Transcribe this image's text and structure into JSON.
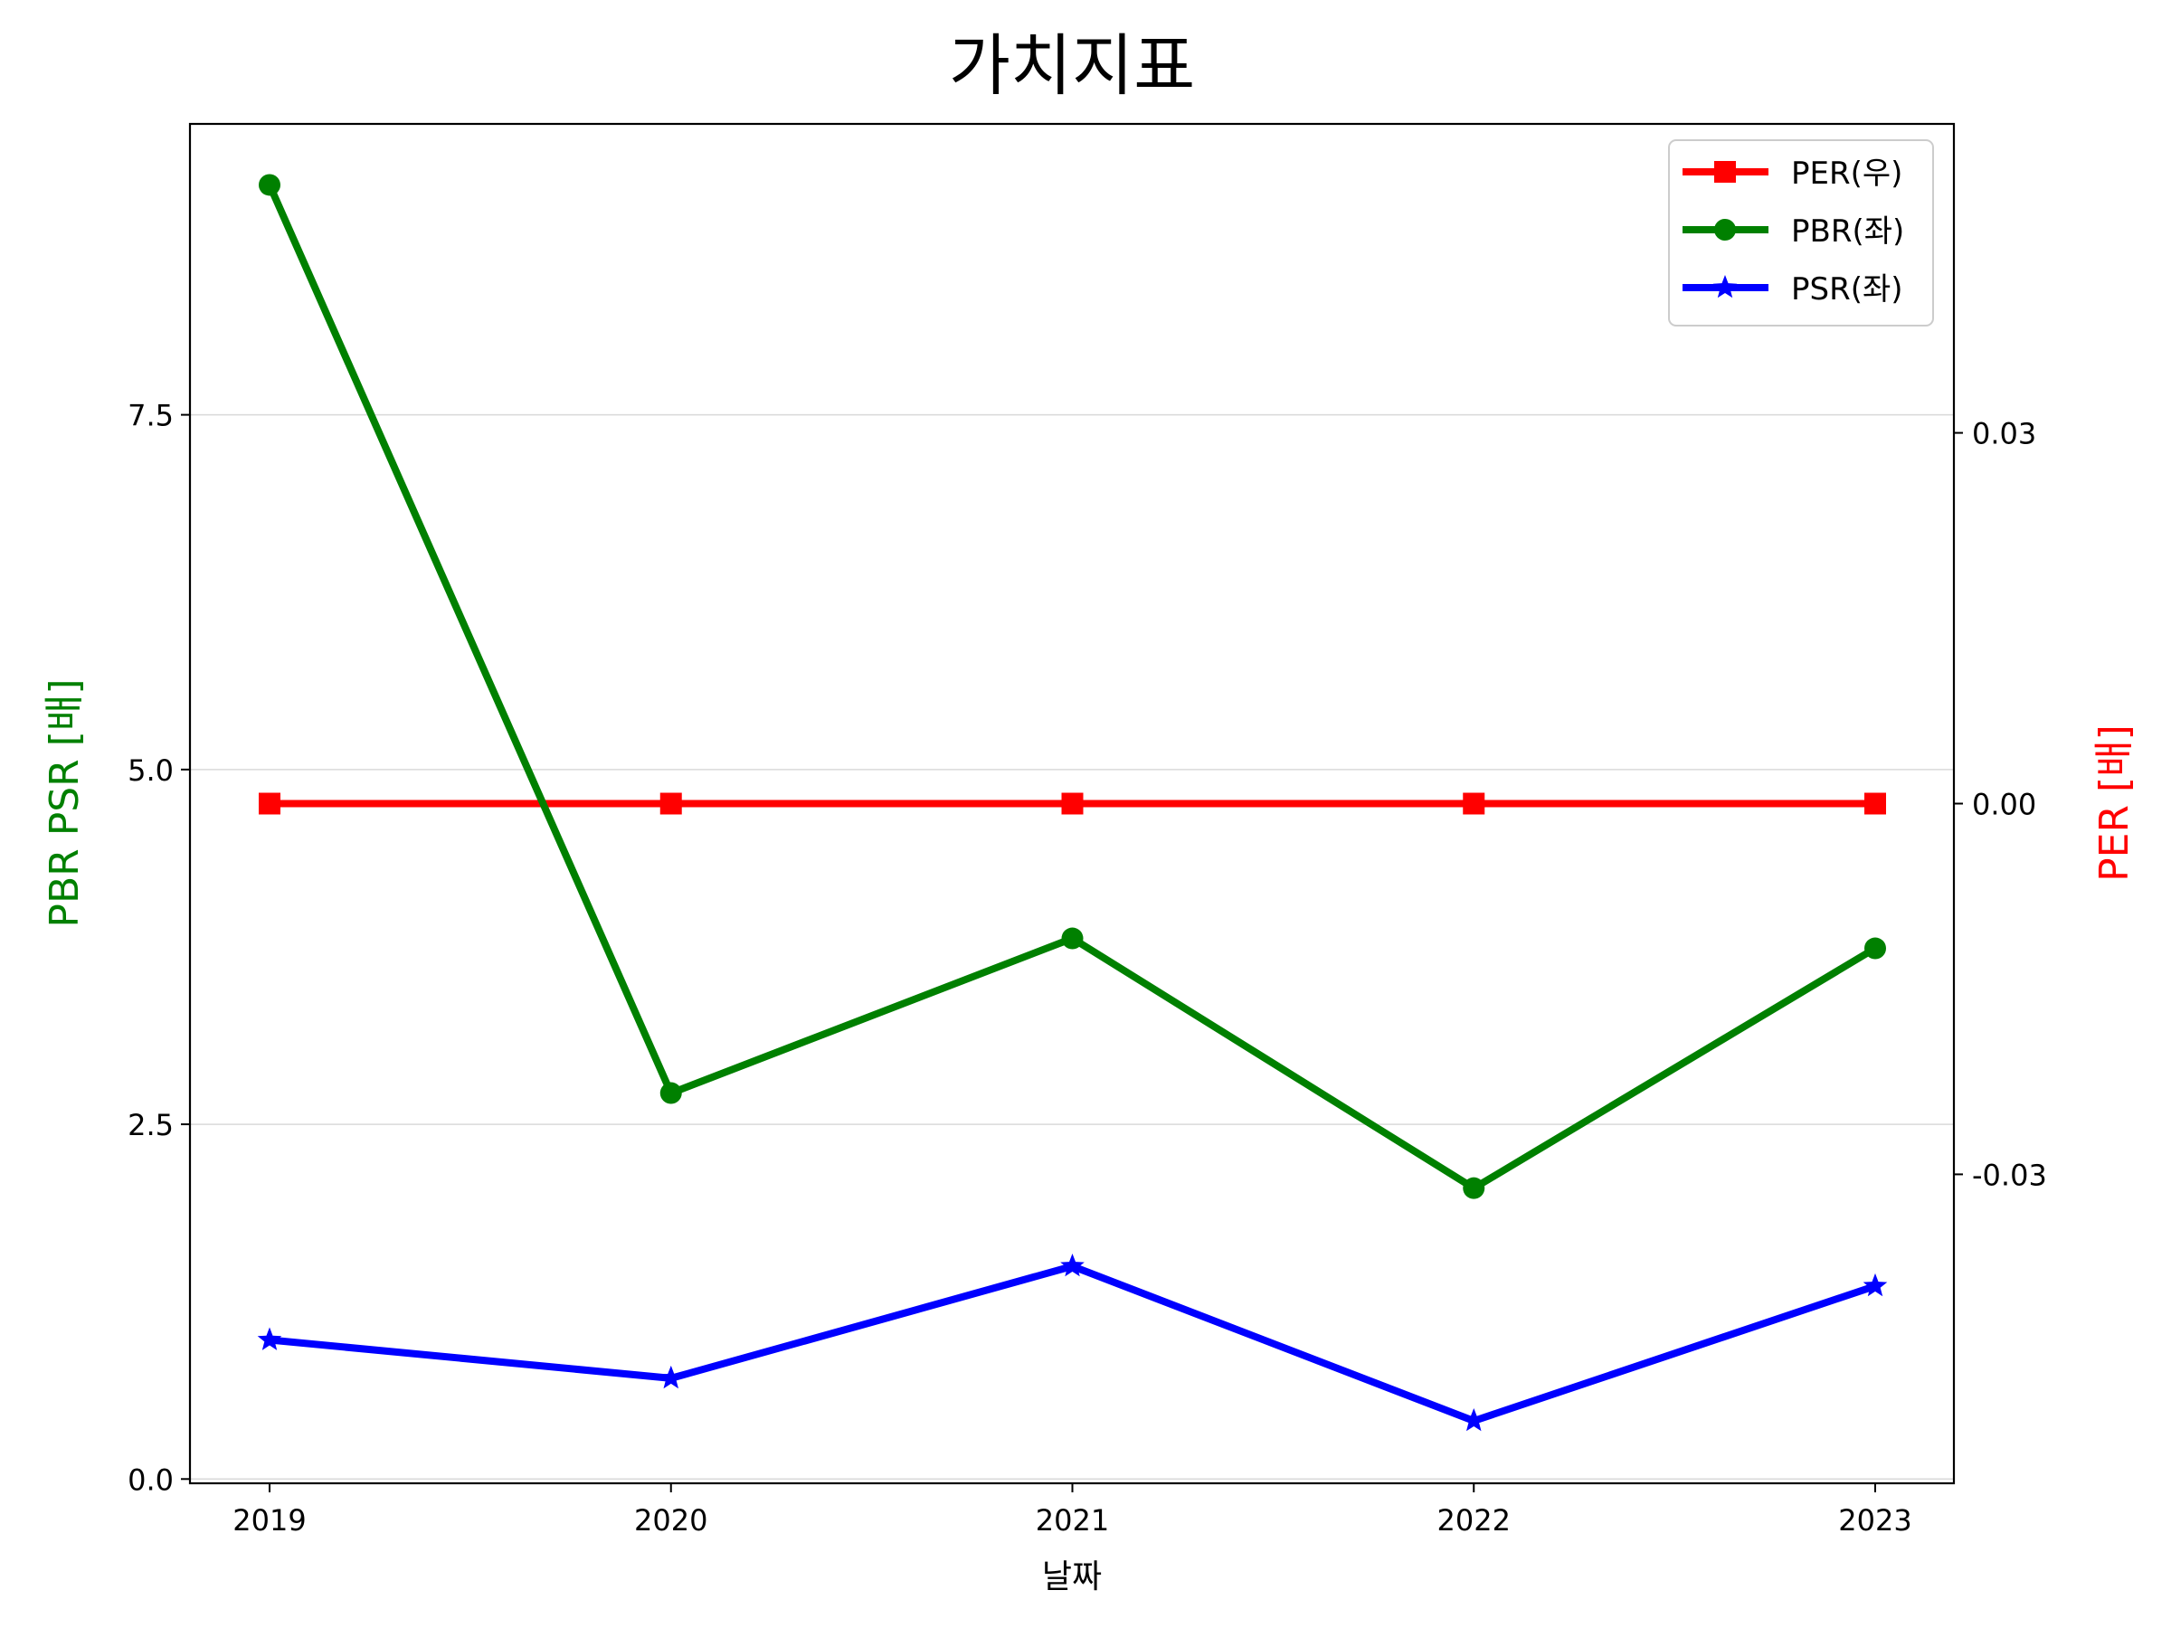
{
  "chart_data": {
    "type": "line",
    "title": "가치지표",
    "xlabel": "날짜",
    "ylabel_left": "PBR PSR [배]",
    "ylabel_right": "PER [배]",
    "x": [
      "2019",
      "2020",
      "2021",
      "2022",
      "2023"
    ],
    "ylim_left": [
      -0.03,
      9.55
    ],
    "ylim_right": [
      -0.055,
      0.055
    ],
    "yticks_left": [
      "0.0",
      "2.5",
      "5.0",
      "7.5"
    ],
    "yticks_left_values": [
      0,
      2.5,
      5,
      7.5
    ],
    "yticks_right": [
      "-0.03",
      "0.00",
      "0.03"
    ],
    "yticks_right_values": [
      -0.03,
      0,
      0.03
    ],
    "grid": "horizontal",
    "legend_position": "top-right",
    "series": [
      {
        "name": "PER(우)",
        "axis": "right",
        "color": "#ff0000",
        "marker": "square",
        "values": [
          0,
          0,
          0,
          0,
          0
        ]
      },
      {
        "name": "PBR(좌)",
        "axis": "left",
        "color": "#008000",
        "marker": "circle",
        "values": [
          9.12,
          2.72,
          3.81,
          2.05,
          3.74
        ]
      },
      {
        "name": "PSR(좌)",
        "axis": "left",
        "color": "#0000ff",
        "marker": "star",
        "values": [
          0.98,
          0.71,
          1.5,
          0.41,
          1.36
        ]
      }
    ],
    "colors": {
      "ylabel_left": "#008000",
      "ylabel_right": "#ff0000"
    }
  }
}
